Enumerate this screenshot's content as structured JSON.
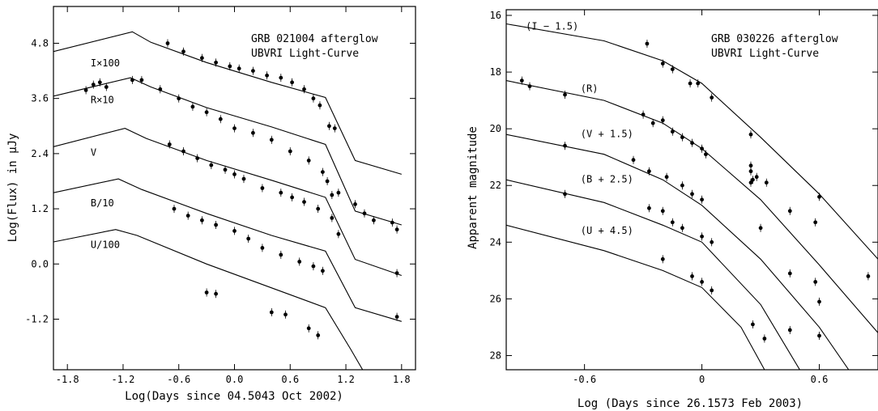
{
  "chart_data": [
    {
      "type": "line",
      "title": "GRB 021004 afterglow",
      "subtitle": "UBVRI Light-Curve",
      "xlabel": "Log(Days since 04.5043 Oct 2002)",
      "ylabel": "Log(Flux) in μJy",
      "xlim": [
        -1.95,
        1.95
      ],
      "ylim": [
        -2.3,
        5.6
      ],
      "xticks": [
        -1.8,
        -1.2,
        -0.6,
        0.0,
        0.6,
        1.2,
        1.8
      ],
      "xticklabels": [
        "-1.8",
        "-1.2",
        "-0.6",
        "0.0",
        "0.6",
        "1.2",
        "1.8"
      ],
      "yticks": [
        -1.2,
        0.0,
        1.2,
        2.4,
        3.6,
        4.8
      ],
      "yticklabels": [
        "-1.2",
        "0.0",
        "1.2",
        "2.4",
        "3.6",
        "4.8"
      ],
      "series": [
        {
          "name": "I×100",
          "label_at": [
            -1.55,
            4.3
          ],
          "curve": [
            [
              -1.95,
              4.62
            ],
            [
              -1.1,
              5.05
            ],
            [
              -0.9,
              4.82
            ],
            [
              -0.3,
              4.38
            ],
            [
              0.4,
              3.95
            ],
            [
              0.98,
              3.62
            ],
            [
              1.3,
              2.25
            ],
            [
              1.8,
              1.95
            ]
          ],
          "points": [
            [
              -0.72,
              4.8
            ],
            [
              -0.55,
              4.62
            ],
            [
              -0.35,
              4.48
            ],
            [
              -0.2,
              4.38
            ],
            [
              -0.05,
              4.3
            ],
            [
              0.05,
              4.25
            ],
            [
              0.2,
              4.2
            ],
            [
              0.35,
              4.1
            ],
            [
              0.5,
              4.05
            ],
            [
              0.62,
              3.95
            ],
            [
              0.75,
              3.8
            ],
            [
              0.85,
              3.6
            ],
            [
              0.92,
              3.45
            ],
            [
              1.02,
              3.0
            ],
            [
              1.08,
              2.95
            ]
          ]
        },
        {
          "name": "R×10",
          "label_at": [
            -1.55,
            3.5
          ],
          "curve": [
            [
              -1.95,
              3.65
            ],
            [
              -1.12,
              4.05
            ],
            [
              -0.9,
              3.85
            ],
            [
              -0.3,
              3.4
            ],
            [
              0.4,
              2.98
            ],
            [
              0.98,
              2.6
            ],
            [
              1.3,
              1.15
            ],
            [
              1.8,
              0.85
            ]
          ],
          "points": [
            [
              -1.6,
              3.78
            ],
            [
              -1.52,
              3.9
            ],
            [
              -1.45,
              3.95
            ],
            [
              -1.38,
              3.85
            ],
            [
              -1.1,
              4.0
            ],
            [
              -1.0,
              4.0
            ],
            [
              -0.8,
              3.8
            ],
            [
              -0.6,
              3.6
            ],
            [
              -0.45,
              3.42
            ],
            [
              -0.3,
              3.3
            ],
            [
              -0.15,
              3.15
            ],
            [
              0.0,
              2.95
            ],
            [
              0.2,
              2.85
            ],
            [
              0.4,
              2.7
            ],
            [
              0.6,
              2.45
            ],
            [
              0.8,
              2.25
            ],
            [
              0.95,
              2.0
            ],
            [
              1.0,
              1.8
            ],
            [
              1.05,
              1.5
            ],
            [
              1.12,
              1.55
            ],
            [
              1.3,
              1.3
            ],
            [
              1.4,
              1.1
            ],
            [
              1.5,
              0.95
            ],
            [
              1.7,
              0.9
            ],
            [
              1.75,
              0.75
            ]
          ]
        },
        {
          "name": "V",
          "label_at": [
            -1.55,
            2.35
          ],
          "curve": [
            [
              -1.95,
              2.55
            ],
            [
              -1.18,
              2.95
            ],
            [
              -0.95,
              2.73
            ],
            [
              -0.3,
              2.25
            ],
            [
              0.4,
              1.82
            ],
            [
              0.98,
              1.45
            ],
            [
              1.3,
              0.1
            ],
            [
              1.8,
              -0.25
            ]
          ],
          "points": [
            [
              -0.7,
              2.6
            ],
            [
              -0.55,
              2.45
            ],
            [
              -0.4,
              2.3
            ],
            [
              -0.25,
              2.15
            ],
            [
              -0.1,
              2.05
            ],
            [
              0.0,
              1.95
            ],
            [
              0.1,
              1.85
            ],
            [
              0.3,
              1.65
            ],
            [
              0.5,
              1.55
            ],
            [
              0.62,
              1.45
            ],
            [
              0.75,
              1.35
            ],
            [
              0.9,
              1.2
            ],
            [
              1.05,
              1.0
            ],
            [
              1.12,
              0.65
            ],
            [
              1.75,
              -0.2
            ]
          ]
        },
        {
          "name": "B/10",
          "label_at": [
            -1.55,
            1.25
          ],
          "curve": [
            [
              -1.95,
              1.55
            ],
            [
              -1.25,
              1.85
            ],
            [
              -1.0,
              1.62
            ],
            [
              -0.3,
              1.1
            ],
            [
              0.4,
              0.62
            ],
            [
              0.98,
              0.28
            ],
            [
              1.3,
              -0.95
            ],
            [
              1.8,
              -1.25
            ]
          ],
          "points": [
            [
              -0.65,
              1.2
            ],
            [
              -0.5,
              1.05
            ],
            [
              -0.35,
              0.95
            ],
            [
              -0.2,
              0.85
            ],
            [
              0.0,
              0.72
            ],
            [
              0.15,
              0.55
            ],
            [
              0.3,
              0.35
            ],
            [
              0.5,
              0.2
            ],
            [
              0.7,
              0.05
            ],
            [
              0.85,
              -0.05
            ],
            [
              0.95,
              -0.15
            ],
            [
              1.75,
              -1.15
            ]
          ]
        },
        {
          "name": "U/100",
          "label_at": [
            -1.55,
            0.35
          ],
          "curve": [
            [
              -1.95,
              0.48
            ],
            [
              -1.28,
              0.75
            ],
            [
              -1.05,
              0.62
            ],
            [
              -0.3,
              0.0
            ],
            [
              0.4,
              -0.52
            ],
            [
              0.98,
              -0.95
            ],
            [
              1.25,
              -1.85
            ],
            [
              1.38,
              -2.3
            ]
          ],
          "points": [
            [
              -0.3,
              -0.62
            ],
            [
              -0.2,
              -0.65
            ],
            [
              0.4,
              -1.05
            ],
            [
              0.55,
              -1.1
            ],
            [
              0.8,
              -1.4
            ],
            [
              0.9,
              -1.55
            ]
          ]
        }
      ]
    },
    {
      "type": "line",
      "title": "GRB 030226 afterglow",
      "subtitle": "UBVRI Light-Curve",
      "xlabel": "Log (Days since 26.1573 Feb 2003)",
      "ylabel": "Apparent magnitude",
      "xlim": [
        -1.0,
        0.9
      ],
      "ylim": [
        28.5,
        15.8
      ],
      "yinverted": true,
      "xticks": [
        -0.6,
        0.0,
        0.6
      ],
      "xticklabels": [
        "-0.6",
        "0",
        "0.6"
      ],
      "yticks": [
        16,
        18,
        20,
        22,
        24,
        26,
        28
      ],
      "yticklabels": [
        "16",
        "18",
        "20",
        "22",
        "24",
        "26",
        "28"
      ],
      "series": [
        {
          "name": "(I − 1.5)",
          "label_at": [
            -0.9,
            16.5
          ],
          "curve": [
            [
              -1.0,
              16.3
            ],
            [
              -0.5,
              16.9
            ],
            [
              -0.2,
              17.6
            ],
            [
              0.0,
              18.4
            ],
            [
              0.3,
              20.3
            ],
            [
              0.6,
              22.3
            ],
            [
              0.9,
              24.6
            ]
          ],
          "points": [
            [
              -0.28,
              17.0
            ],
            [
              -0.2,
              17.7
            ],
            [
              -0.15,
              17.9
            ],
            [
              -0.06,
              18.4
            ],
            [
              -0.02,
              18.4
            ],
            [
              0.05,
              18.9
            ],
            [
              0.25,
              20.2
            ],
            [
              0.25,
              21.3
            ],
            [
              0.26,
              21.8
            ]
          ]
        },
        {
          "name": "(R)",
          "label_at": [
            -0.62,
            18.7
          ],
          "curve": [
            [
              -1.0,
              18.3
            ],
            [
              -0.5,
              19.0
            ],
            [
              -0.2,
              19.8
            ],
            [
              0.0,
              20.7
            ],
            [
              0.3,
              22.5
            ],
            [
              0.6,
              24.8
            ],
            [
              0.9,
              27.2
            ]
          ],
          "points": [
            [
              -0.92,
              18.3
            ],
            [
              -0.88,
              18.5
            ],
            [
              -0.7,
              18.8
            ],
            [
              -0.3,
              19.5
            ],
            [
              -0.25,
              19.8
            ],
            [
              -0.2,
              19.7
            ],
            [
              -0.15,
              20.1
            ],
            [
              -0.1,
              20.3
            ],
            [
              -0.05,
              20.5
            ],
            [
              0.0,
              20.7
            ],
            [
              0.02,
              20.9
            ],
            [
              0.25,
              21.9
            ],
            [
              0.28,
              21.7
            ],
            [
              0.33,
              21.9
            ],
            [
              0.45,
              22.9
            ],
            [
              0.6,
              22.4
            ],
            [
              0.58,
              23.3
            ],
            [
              0.85,
              25.2
            ]
          ]
        },
        {
          "name": "(V + 1.5)",
          "label_at": [
            -0.62,
            20.3
          ],
          "curve": [
            [
              -1.0,
              20.2
            ],
            [
              -0.5,
              20.9
            ],
            [
              -0.2,
              21.8
            ],
            [
              0.0,
              22.7
            ],
            [
              0.3,
              24.6
            ],
            [
              0.6,
              27.0
            ],
            [
              0.75,
              28.5
            ]
          ],
          "points": [
            [
              -0.7,
              20.6
            ],
            [
              -0.35,
              21.1
            ],
            [
              -0.27,
              21.5
            ],
            [
              -0.18,
              21.7
            ],
            [
              -0.1,
              22.0
            ],
            [
              -0.05,
              22.3
            ],
            [
              0.0,
              22.5
            ],
            [
              0.25,
              21.5
            ],
            [
              0.3,
              23.5
            ],
            [
              0.45,
              25.1
            ],
            [
              0.58,
              25.4
            ],
            [
              0.6,
              26.1
            ]
          ]
        },
        {
          "name": "(B + 2.5)",
          "label_at": [
            -0.62,
            21.9
          ],
          "curve": [
            [
              -1.0,
              21.8
            ],
            [
              -0.5,
              22.6
            ],
            [
              -0.2,
              23.4
            ],
            [
              0.0,
              24.0
            ],
            [
              0.3,
              26.2
            ],
            [
              0.5,
              28.5
            ]
          ],
          "points": [
            [
              -0.7,
              22.3
            ],
            [
              -0.27,
              22.8
            ],
            [
              -0.2,
              22.9
            ],
            [
              -0.15,
              23.3
            ],
            [
              -0.1,
              23.5
            ],
            [
              0.0,
              23.8
            ],
            [
              0.05,
              24.0
            ],
            [
              0.26,
              26.9
            ],
            [
              0.45,
              27.1
            ],
            [
              0.6,
              27.3
            ]
          ]
        },
        {
          "name": "(U + 4.5)",
          "label_at": [
            -0.62,
            23.7
          ],
          "curve": [
            [
              -1.0,
              23.4
            ],
            [
              -0.5,
              24.3
            ],
            [
              -0.2,
              25.0
            ],
            [
              0.0,
              25.6
            ],
            [
              0.2,
              27.0
            ],
            [
              0.32,
              28.5
            ]
          ],
          "points": [
            [
              -0.2,
              24.6
            ],
            [
              -0.05,
              25.2
            ],
            [
              0.0,
              25.4
            ],
            [
              0.05,
              25.7
            ],
            [
              0.32,
              27.4
            ]
          ]
        }
      ]
    }
  ]
}
